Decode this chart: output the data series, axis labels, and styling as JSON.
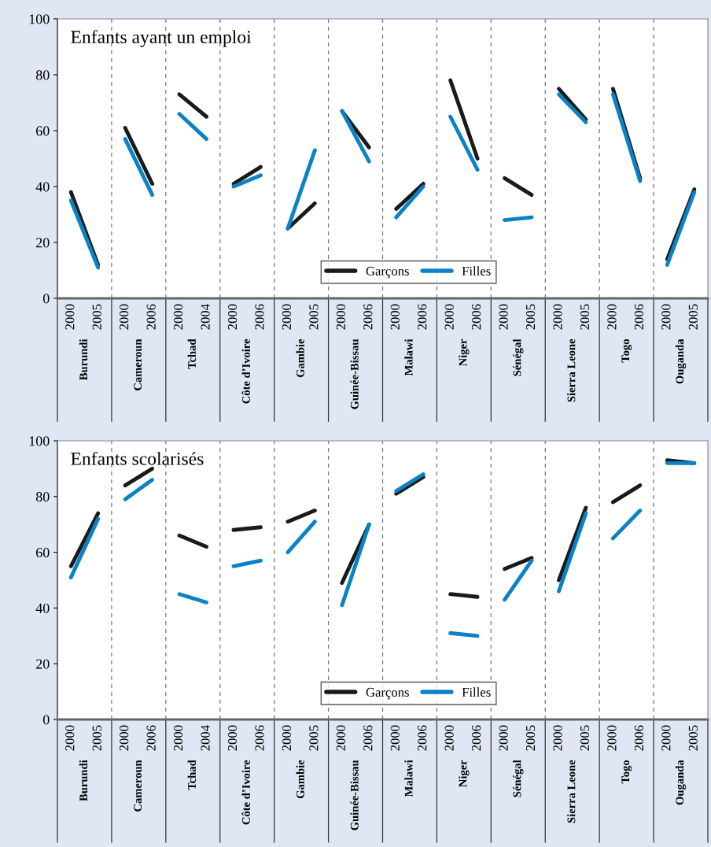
{
  "chart_data": [
    {
      "type": "line",
      "title": "Enfants ayant un emploi",
      "categories": [
        "2000",
        "2005",
        "2000",
        "2006",
        "2000",
        "2004",
        "2000",
        "2006",
        "2000",
        "2005",
        "2000",
        "2006",
        "2000",
        "2006",
        "2000",
        "2006",
        "2000",
        "2005",
        "2000",
        "2005",
        "2000",
        "2006",
        "2000",
        "2005"
      ],
      "annotations": [
        "Burundi",
        "Cameroun",
        "Tchad",
        "Côte d’Ivoire",
        "Gambie",
        "Guinée-Bissau",
        "Malawi",
        "Niger",
        "Sénégal",
        "Sierra Leone",
        "Togo",
        "Ouganda"
      ],
      "series": [
        {
          "name": "Garçons",
          "color": "#1a1a1a",
          "values": [
            38,
            12,
            61,
            41,
            73,
            65,
            41,
            47,
            25,
            34,
            67,
            54,
            32,
            41,
            78,
            50,
            43,
            37,
            75,
            64,
            75,
            43,
            14,
            39
          ]
        },
        {
          "name": "Filles",
          "color": "#0a82c6",
          "values": [
            35,
            11,
            57,
            37,
            66,
            57,
            40,
            44,
            25,
            53,
            67,
            49,
            29,
            40,
            65,
            46,
            28,
            29,
            73,
            63,
            73,
            42,
            12,
            38
          ]
        }
      ],
      "ylim": [
        0,
        100
      ],
      "yticks": [
        0,
        20,
        40,
        60,
        80,
        100
      ],
      "grid": false,
      "legend": "bottom"
    },
    {
      "type": "line",
      "title": "Enfants scolarisés",
      "categories": [
        "2000",
        "2005",
        "2000",
        "2006",
        "2000",
        "2004",
        "2000",
        "2006",
        "2000",
        "2005",
        "2000",
        "2006",
        "2000",
        "2006",
        "2000",
        "2006",
        "2000",
        "2005",
        "2000",
        "2005",
        "2000",
        "2006",
        "2000",
        "2005"
      ],
      "annotations": [
        "Burundi",
        "Cameroun",
        "Tchad",
        "Côte d’Ivoire",
        "Gambie",
        "Guinée-Bissau",
        "Malawi",
        "Niger",
        "Sénégal",
        "Sierra Leone",
        "Togo",
        "Ouganda"
      ],
      "series": [
        {
          "name": "Garçons",
          "color": "#1a1a1a",
          "values": [
            55,
            74,
            84,
            90,
            66,
            62,
            68,
            69,
            71,
            75,
            49,
            70,
            81,
            87,
            45,
            44,
            54,
            58,
            50,
            76,
            78,
            84,
            93,
            92
          ]
        },
        {
          "name": "Filles",
          "color": "#0a82c6",
          "values": [
            51,
            72,
            79,
            86,
            45,
            42,
            55,
            57,
            60,
            71,
            41,
            70,
            82,
            88,
            31,
            30,
            43,
            57,
            46,
            74,
            65,
            75,
            92,
            92
          ]
        }
      ],
      "ylim": [
        0,
        100
      ],
      "yticks": [
        0,
        20,
        40,
        60,
        80,
        100
      ],
      "grid": false,
      "legend": "bottom"
    }
  ]
}
